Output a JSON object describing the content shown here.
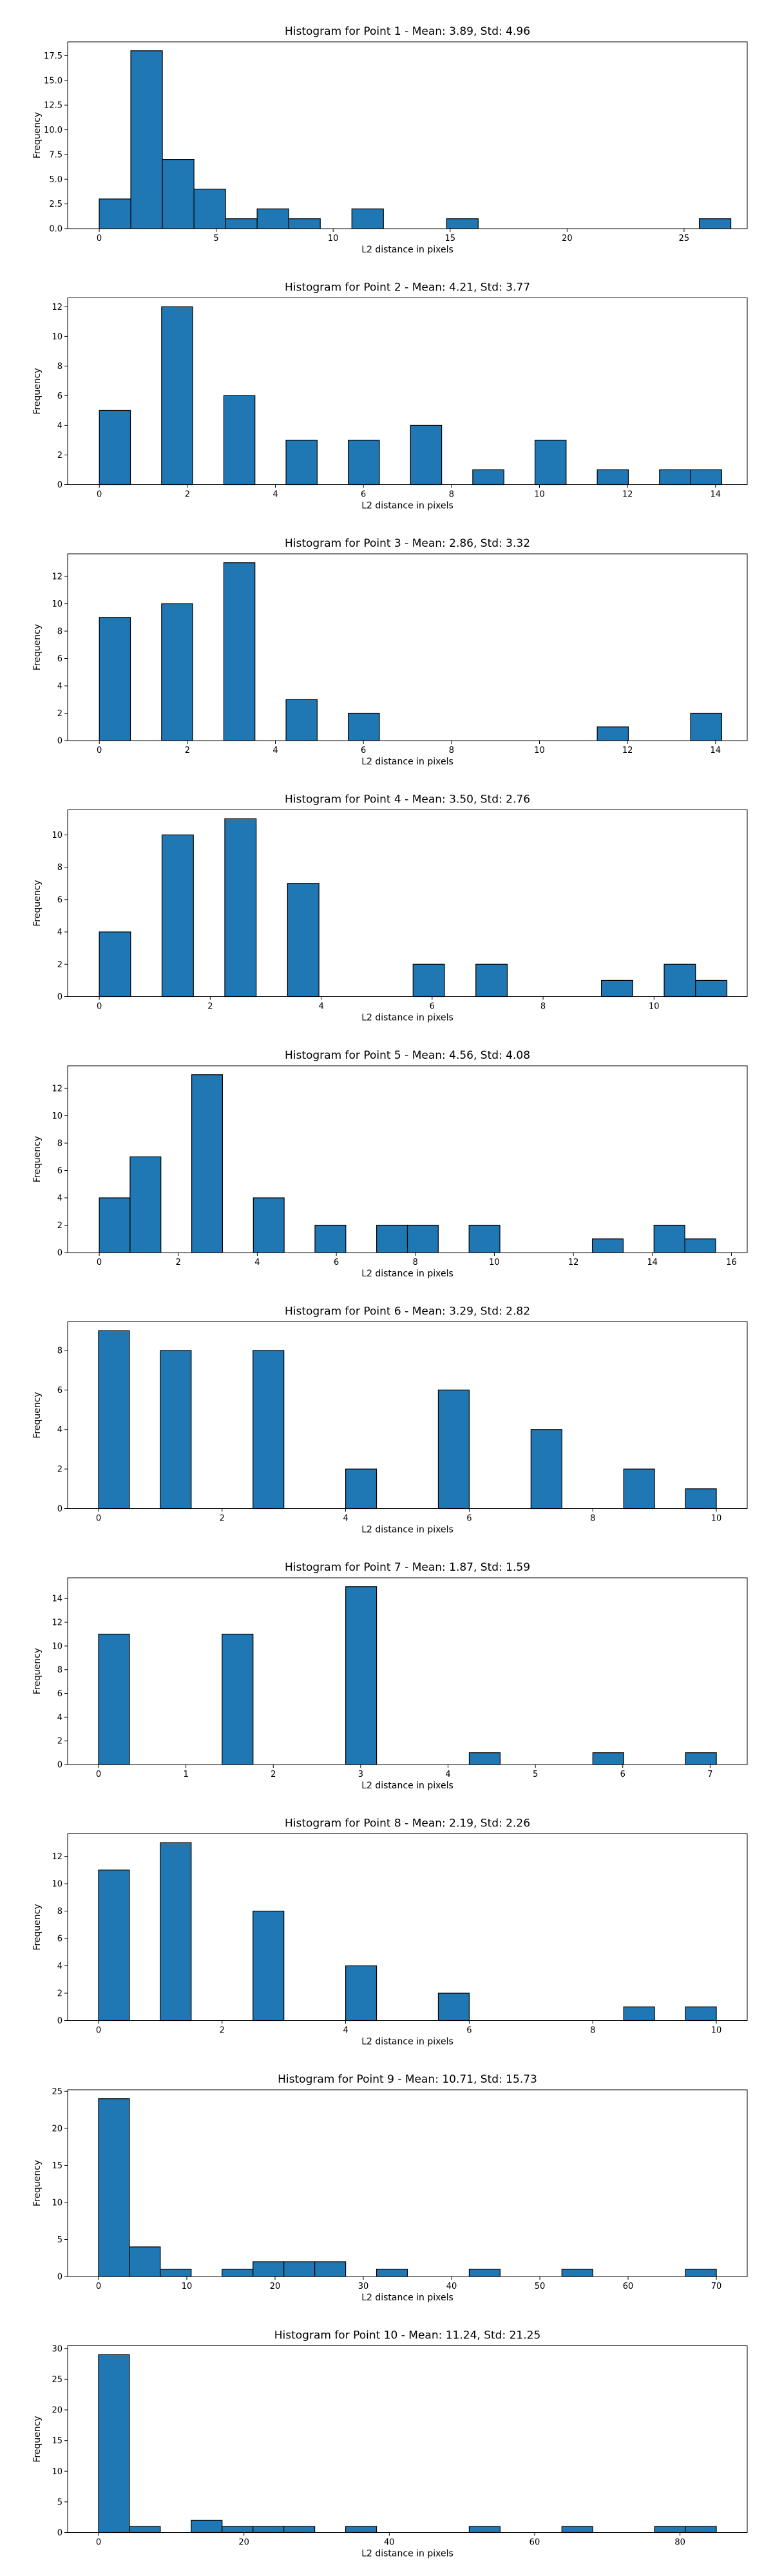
{
  "figure": {
    "bar_color": "#1f77b4",
    "edge_color": "#000000"
  },
  "chart_data": [
    {
      "type": "bar",
      "title": "Histogram for Point 1 - Mean: 3.89, Std: 4.96",
      "xlabel": "L2 distance in pixels",
      "ylabel": "Frequency",
      "grid": false,
      "xlim": [
        -1.35,
        27.7
      ],
      "ylim": [
        0,
        18.9
      ],
      "xticks": [
        0,
        5,
        10,
        15,
        20,
        25
      ],
      "xtick_labels": [
        "0",
        "5",
        "10",
        "15",
        "20",
        "25"
      ],
      "yticks": [
        0,
        2.5,
        5,
        7.5,
        10,
        12.5,
        15,
        17.5
      ],
      "ytick_labels": [
        "0.0",
        "2.5",
        "5.0",
        "7.5",
        "10.0",
        "12.5",
        "15.0",
        "17.5"
      ],
      "bin_start": 0,
      "bin_width": 1.35,
      "counts": [
        3,
        18,
        7,
        4,
        1,
        2,
        1,
        0,
        2,
        0,
        0,
        1,
        0,
        0,
        0,
        0,
        0,
        0,
        0,
        1
      ]
    },
    {
      "type": "bar",
      "title": "Histogram for Point 2 - Mean: 4.21, Std: 3.77",
      "xlabel": "L2 distance in pixels",
      "ylabel": "Frequency",
      "grid": false,
      "xlim": [
        -0.72,
        14.72
      ],
      "ylim": [
        0,
        12.6
      ],
      "xticks": [
        0,
        2,
        4,
        6,
        8,
        10,
        12,
        14
      ],
      "xtick_labels": [
        "0",
        "2",
        "4",
        "6",
        "8",
        "10",
        "12",
        "14"
      ],
      "yticks": [
        0,
        2,
        4,
        6,
        8,
        10,
        12
      ],
      "ytick_labels": [
        "0",
        "2",
        "4",
        "6",
        "8",
        "10",
        "12"
      ],
      "bin_start": 0,
      "bin_width": 0.707,
      "counts": [
        5,
        0,
        12,
        0,
        6,
        0,
        3,
        0,
        3,
        0,
        4,
        0,
        1,
        0,
        3,
        0,
        1,
        0,
        1,
        1
      ]
    },
    {
      "type": "bar",
      "title": "Histogram for Point 3 - Mean: 2.86, Std: 3.32",
      "xlabel": "L2 distance in pixels",
      "ylabel": "Frequency",
      "grid": false,
      "xlim": [
        -0.72,
        14.72
      ],
      "ylim": [
        0,
        13.65
      ],
      "xticks": [
        0,
        2,
        4,
        6,
        8,
        10,
        12,
        14
      ],
      "xtick_labels": [
        "0",
        "2",
        "4",
        "6",
        "8",
        "10",
        "12",
        "14"
      ],
      "yticks": [
        0,
        2,
        4,
        6,
        8,
        10,
        12
      ],
      "ytick_labels": [
        "0",
        "2",
        "4",
        "6",
        "8",
        "10",
        "12"
      ],
      "bin_start": 0,
      "bin_width": 0.707,
      "counts": [
        9,
        0,
        10,
        0,
        13,
        0,
        3,
        0,
        2,
        0,
        0,
        0,
        0,
        0,
        0,
        0,
        1,
        0,
        0,
        2
      ]
    },
    {
      "type": "bar",
      "title": "Histogram for Point 4 - Mean: 3.50, Std: 2.76",
      "xlabel": "L2 distance in pixels",
      "ylabel": "Frequency",
      "grid": false,
      "xlim": [
        -0.57,
        11.68
      ],
      "ylim": [
        0,
        11.55
      ],
      "xticks": [
        0,
        2,
        4,
        6,
        8,
        10
      ],
      "xtick_labels": [
        "0",
        "2",
        "4",
        "6",
        "8",
        "10"
      ],
      "yticks": [
        0,
        2,
        4,
        6,
        8,
        10
      ],
      "ytick_labels": [
        "0",
        "2",
        "4",
        "6",
        "8",
        "10"
      ],
      "bin_start": 0,
      "bin_width": 0.5657,
      "counts": [
        4,
        0,
        10,
        0,
        11,
        0,
        7,
        0,
        0,
        0,
        2,
        0,
        2,
        0,
        0,
        0,
        1,
        0,
        2,
        1
      ]
    },
    {
      "type": "bar",
      "title": "Histogram for Point 5 - Mean: 4.56, Std: 4.08",
      "xlabel": "L2 distance in pixels",
      "ylabel": "Frequency",
      "grid": false,
      "xlim": [
        -0.8,
        16.4
      ],
      "ylim": [
        0,
        13.65
      ],
      "xticks": [
        0,
        2,
        4,
        6,
        8,
        10,
        12,
        14,
        16
      ],
      "xtick_labels": [
        "0",
        "2",
        "4",
        "6",
        "8",
        "10",
        "12",
        "14",
        "16"
      ],
      "yticks": [
        0,
        2,
        4,
        6,
        8,
        10,
        12
      ],
      "ytick_labels": [
        "0",
        "2",
        "4",
        "6",
        "8",
        "10",
        "12"
      ],
      "bin_start": 0,
      "bin_width": 0.78,
      "counts": [
        4,
        7,
        0,
        13,
        0,
        4,
        0,
        2,
        0,
        2,
        2,
        0,
        2,
        0,
        0,
        0,
        1,
        0,
        2,
        1
      ]
    },
    {
      "type": "bar",
      "title": "Histogram for Point 6 - Mean: 3.29, Std: 2.82",
      "xlabel": "L2 distance in pixels",
      "ylabel": "Frequency",
      "grid": false,
      "xlim": [
        -0.5,
        10.5
      ],
      "ylim": [
        0,
        9.45
      ],
      "xticks": [
        0,
        2,
        4,
        6,
        8,
        10
      ],
      "xtick_labels": [
        "0",
        "2",
        "4",
        "6",
        "8",
        "10"
      ],
      "yticks": [
        0,
        2,
        4,
        6,
        8
      ],
      "ytick_labels": [
        "0",
        "2",
        "4",
        "6",
        "8"
      ],
      "bin_start": 0,
      "bin_width": 0.5,
      "counts": [
        9,
        0,
        8,
        0,
        0,
        8,
        0,
        0,
        2,
        0,
        0,
        6,
        0,
        0,
        4,
        0,
        0,
        2,
        0,
        1
      ]
    },
    {
      "type": "bar",
      "title": "Histogram for Point 7 - Mean: 1.87, Std: 1.59",
      "xlabel": "L2 distance in pixels",
      "ylabel": "Frequency",
      "grid": false,
      "xlim": [
        -0.354,
        7.425
      ],
      "ylim": [
        0,
        15.75
      ],
      "xticks": [
        0,
        1,
        2,
        3,
        4,
        5,
        6,
        7
      ],
      "xtick_labels": [
        "0",
        "1",
        "2",
        "3",
        "4",
        "5",
        "6",
        "7"
      ],
      "yticks": [
        0,
        2,
        4,
        6,
        8,
        10,
        12,
        14
      ],
      "ytick_labels": [
        "0",
        "2",
        "4",
        "6",
        "8",
        "10",
        "12",
        "14"
      ],
      "bin_start": 0,
      "bin_width": 0.3536,
      "counts": [
        11,
        0,
        0,
        0,
        11,
        0,
        0,
        0,
        15,
        0,
        0,
        0,
        1,
        0,
        0,
        0,
        1,
        0,
        0,
        1
      ]
    },
    {
      "type": "bar",
      "title": "Histogram for Point 8 - Mean: 2.19, Std: 2.26",
      "xlabel": "L2 distance in pixels",
      "ylabel": "Frequency",
      "grid": false,
      "xlim": [
        -0.5,
        10.5
      ],
      "ylim": [
        0,
        13.65
      ],
      "xticks": [
        0,
        2,
        4,
        6,
        8,
        10
      ],
      "xtick_labels": [
        "0",
        "2",
        "4",
        "6",
        "8",
        "10"
      ],
      "yticks": [
        0,
        2,
        4,
        6,
        8,
        10,
        12
      ],
      "ytick_labels": [
        "0",
        "2",
        "4",
        "6",
        "8",
        "10",
        "12"
      ],
      "bin_start": 0,
      "bin_width": 0.5,
      "counts": [
        11,
        0,
        13,
        0,
        0,
        8,
        0,
        0,
        4,
        0,
        0,
        2,
        0,
        0,
        0,
        0,
        0,
        1,
        0,
        1
      ]
    },
    {
      "type": "bar",
      "title": "Histogram for Point 9 - Mean: 10.71, Std: 15.73",
      "xlabel": "L2 distance in pixels",
      "ylabel": "Frequency",
      "grid": false,
      "xlim": [
        -3.5,
        73.5
      ],
      "ylim": [
        0,
        25.2
      ],
      "xticks": [
        0,
        10,
        20,
        30,
        40,
        50,
        60,
        70
      ],
      "xtick_labels": [
        "0",
        "10",
        "20",
        "30",
        "40",
        "50",
        "60",
        "70"
      ],
      "yticks": [
        0,
        5,
        10,
        15,
        20,
        25
      ],
      "ytick_labels": [
        "0",
        "5",
        "10",
        "15",
        "20",
        "25"
      ],
      "bin_start": 0,
      "bin_width": 3.5,
      "counts": [
        24,
        4,
        1,
        0,
        1,
        2,
        2,
        2,
        0,
        1,
        0,
        0,
        1,
        0,
        0,
        1,
        0,
        0,
        0,
        1
      ]
    },
    {
      "type": "bar",
      "title": "Histogram for Point 10 - Mean: 11.24, Std: 21.25",
      "xlabel": "L2 distance in pixels",
      "ylabel": "Frequency",
      "grid": false,
      "xlim": [
        -4.25,
        89.25
      ],
      "ylim": [
        0,
        30.45
      ],
      "xticks": [
        0,
        20,
        40,
        60,
        80
      ],
      "xtick_labels": [
        "0",
        "20",
        "40",
        "60",
        "80"
      ],
      "yticks": [
        0,
        5,
        10,
        15,
        20,
        25,
        30
      ],
      "ytick_labels": [
        "0",
        "5",
        "10",
        "15",
        "20",
        "25",
        "30"
      ],
      "bin_start": 0,
      "bin_width": 4.25,
      "counts": [
        29,
        1,
        0,
        2,
        1,
        1,
        1,
        0,
        1,
        0,
        0,
        0,
        1,
        0,
        0,
        1,
        0,
        0,
        1,
        1
      ]
    }
  ]
}
